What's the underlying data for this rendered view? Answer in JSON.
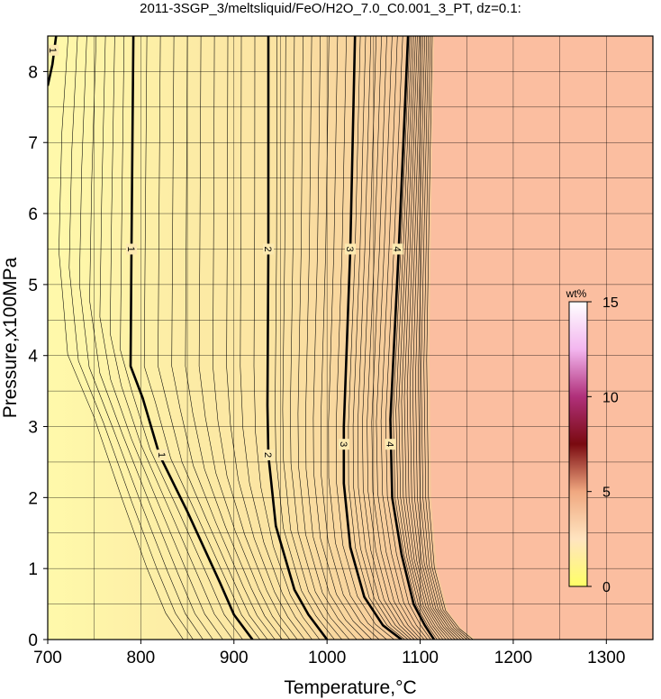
{
  "title": "2011-3SGP_3/meltsliquid/FeO/H2O_7.0_C0.001_3_PT, dz=0.1:",
  "chart_data": {
    "type": "heatmap",
    "title": "2011-3SGP_3/meltsliquid/FeO/H2O_7.0_C0.001_3_PT, dz=0.1:",
    "xlabel": "Temperature,°C",
    "ylabel": "Pressure,x100MPa",
    "xlim": [
      700,
      1350
    ],
    "ylim": [
      0,
      8.5
    ],
    "xticks": [
      "700",
      "800",
      "900",
      "1000",
      "1100",
      "1200",
      "1300"
    ],
    "yticks": [
      "0",
      "1",
      "2",
      "3",
      "4",
      "5",
      "6",
      "7",
      "8"
    ],
    "x_minor_grid": [
      750,
      850,
      950,
      1050,
      1150,
      1250
    ],
    "y_minor_grid": [
      0.5,
      1.5,
      2.5,
      3.5,
      4.5,
      5.5,
      6.5,
      7.5
    ],
    "grid": true,
    "contour_interval": 0.1,
    "labeled_contours": [
      {
        "label": "1",
        "points": [
          [
            792,
            8.5
          ],
          [
            790,
            5.5
          ],
          [
            789,
            3.85
          ],
          [
            802,
            3.4
          ],
          [
            820,
            2.6
          ],
          [
            850,
            1.8
          ],
          [
            885,
            0.8
          ],
          [
            900,
            0.35
          ],
          [
            920,
            0
          ]
        ],
        "labels_at": [
          [
            790,
            5.5
          ],
          [
            823,
            2.6
          ]
        ]
      },
      {
        "label": "2",
        "points": [
          [
            937,
            8.5
          ],
          [
            937,
            5.5
          ],
          [
            936,
            3.3
          ],
          [
            937,
            2.6
          ],
          [
            945,
            1.6
          ],
          [
            965,
            0.7
          ],
          [
            980,
            0.35
          ],
          [
            1000,
            0
          ]
        ],
        "labels_at": [
          [
            937,
            5.5
          ],
          [
            937,
            2.6
          ]
        ]
      },
      {
        "label": "3",
        "points": [
          [
            1030,
            8.5
          ],
          [
            1025,
            5.5
          ],
          [
            1018,
            3.0
          ],
          [
            1018,
            2.2
          ],
          [
            1025,
            1.3
          ],
          [
            1040,
            0.6
          ],
          [
            1060,
            0.2
          ],
          [
            1080,
            0
          ]
        ],
        "labels_at": [
          [
            1025,
            5.5
          ],
          [
            1018,
            2.75
          ]
        ]
      },
      {
        "label": "4",
        "points": [
          [
            1087,
            8.5
          ],
          [
            1077,
            5.5
          ],
          [
            1068,
            3.1
          ],
          [
            1070,
            2.0
          ],
          [
            1080,
            1.2
          ],
          [
            1093,
            0.5
          ],
          [
            1105,
            0.2
          ],
          [
            1115,
            0
          ]
        ],
        "labels_at": [
          [
            1076,
            5.5
          ],
          [
            1068,
            2.75
          ]
        ]
      },
      {
        "label": "1",
        "points": [
          [
            709,
            8.5
          ],
          [
            705,
            8.1
          ],
          [
            700,
            7.8
          ]
        ],
        "labels_at": [
          [
            706,
            8.3
          ]
        ]
      }
    ],
    "saturation_boundary": [
      [
        1115,
        8.5
      ],
      [
        1112,
        6.0
      ],
      [
        1110,
        4.0
      ],
      [
        1112,
        2.0
      ],
      [
        1118,
        1.0
      ],
      [
        1130,
        0.4
      ],
      [
        1145,
        0.15
      ],
      [
        1160,
        0
      ]
    ],
    "fill_colors": {
      "low": "#fff9aa",
      "mid": "#fbe3a2",
      "high": "#f6c89a",
      "saturated": "#fbbea0"
    },
    "colorbar": {
      "label": "wt%",
      "range": [
        0,
        15
      ],
      "ticks": [
        "0",
        "5",
        "10",
        "15"
      ],
      "stops": [
        "#ffff66",
        "#ffe4c0",
        "#f0a880",
        "#7a0a10",
        "#b0307a",
        "#f3b6ef",
        "#ffffff"
      ]
    }
  }
}
